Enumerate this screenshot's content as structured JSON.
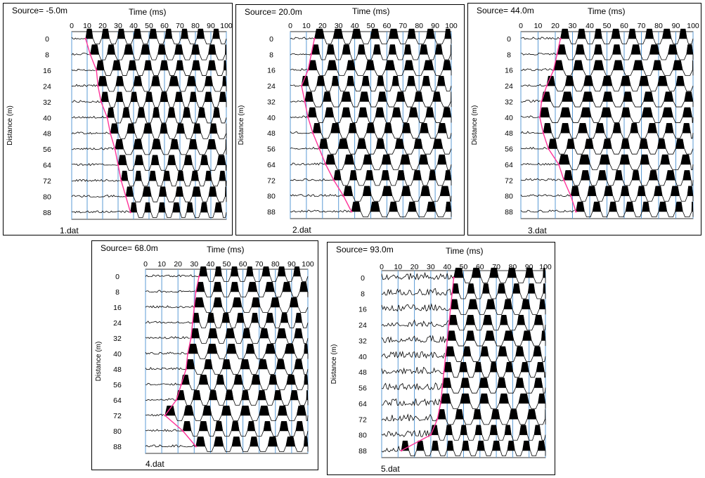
{
  "chart_data": [
    {
      "type": "line",
      "source_label": "Source= -5.0m",
      "file_label": "1.dat",
      "xlabel": "Time (ms)",
      "ylabel": "Distance (m)",
      "xlim": [
        0,
        100
      ],
      "x_ticks": [
        0,
        10,
        20,
        30,
        40,
        50,
        60,
        70,
        80,
        90,
        100
      ],
      "y_ticks": [
        0,
        8,
        16,
        24,
        32,
        40,
        48,
        56,
        64,
        72,
        80,
        88
      ],
      "grid": "vertical",
      "series": [
        {
          "x": [
            9,
            12,
            16,
            17,
            19,
            23,
            25,
            28,
            30,
            32,
            35,
            38
          ],
          "y": [
            0,
            8,
            16,
            24,
            32,
            40,
            48,
            56,
            64,
            72,
            80,
            88
          ]
        }
      ],
      "pick_color": "#ff3399",
      "grid_color": "#5b9bd5"
    },
    {
      "type": "line",
      "source_label": "Source= 20.0m",
      "file_label": "2.dat",
      "xlabel": "Time (ms)",
      "ylabel": "Distance (m)",
      "xlim": [
        0,
        100
      ],
      "x_ticks": [
        0,
        10,
        20,
        30,
        40,
        50,
        60,
        70,
        80,
        90,
        100
      ],
      "y_ticks": [
        0,
        8,
        16,
        24,
        32,
        40,
        48,
        56,
        64,
        72,
        80,
        88
      ],
      "grid": "vertical",
      "series": [
        {
          "x": [
            15,
            13,
            11,
            7,
            9,
            11,
            14,
            18,
            22,
            27,
            33,
            38
          ],
          "y": [
            0,
            8,
            16,
            24,
            32,
            40,
            48,
            56,
            64,
            72,
            80,
            88
          ]
        }
      ],
      "pick_color": "#ff3399",
      "grid_color": "#5b9bd5"
    },
    {
      "type": "line",
      "source_label": "Source= 44.0m",
      "file_label": "3.dat",
      "xlabel": "Time (ms)",
      "ylabel": "Distance (m)",
      "xlim": [
        0,
        100
      ],
      "x_ticks": [
        0,
        10,
        20,
        30,
        40,
        50,
        60,
        70,
        80,
        90,
        100
      ],
      "y_ticks": [
        0,
        8,
        16,
        24,
        32,
        40,
        48,
        56,
        64,
        72,
        80,
        88
      ],
      "grid": "vertical",
      "series": [
        {
          "x": [
            23,
            21,
            19,
            15,
            12,
            11,
            13,
            16,
            22,
            25,
            29,
            32
          ],
          "y": [
            0,
            8,
            16,
            24,
            32,
            40,
            48,
            56,
            64,
            72,
            80,
            88
          ]
        }
      ],
      "pick_color": "#ff3399",
      "grid_color": "#5b9bd5"
    },
    {
      "type": "line",
      "source_label": "Source= 68.0m",
      "file_label": "4.dat",
      "xlabel": "Time (ms)",
      "ylabel": "Distance (m)",
      "xlim": [
        0,
        100
      ],
      "x_ticks": [
        0,
        10,
        20,
        30,
        40,
        50,
        60,
        70,
        80,
        90,
        100
      ],
      "y_ticks": [
        0,
        8,
        16,
        24,
        32,
        40,
        48,
        56,
        64,
        72,
        80,
        88
      ],
      "grid": "vertical",
      "series": [
        {
          "x": [
            33,
            31,
            30,
            29,
            28,
            26,
            25,
            22,
            19,
            12,
            23,
            31
          ],
          "y": [
            0,
            8,
            16,
            24,
            32,
            40,
            48,
            56,
            64,
            72,
            80,
            88
          ]
        }
      ],
      "pick_color": "#ff3399",
      "grid_color": "#5b9bd5"
    },
    {
      "type": "line",
      "source_label": "Source= 93.0m",
      "file_label": "5.dat",
      "xlabel": "Time (ms)",
      "ylabel": "Distance (m)",
      "xlim": [
        0,
        100
      ],
      "x_ticks": [
        0,
        10,
        20,
        30,
        40,
        50,
        60,
        70,
        80,
        90,
        100
      ],
      "y_ticks": [
        0,
        8,
        16,
        24,
        32,
        40,
        48,
        56,
        64,
        72,
        80,
        88
      ],
      "grid": "vertical",
      "series": [
        {
          "x": [
            44,
            43,
            42,
            41,
            40,
            39,
            38,
            37,
            36,
            34,
            30,
            12
          ],
          "y": [
            0,
            8,
            16,
            24,
            32,
            40,
            48,
            56,
            64,
            72,
            80,
            88
          ]
        }
      ],
      "pick_color": "#ff3399",
      "grid_color": "#5b9bd5"
    }
  ]
}
